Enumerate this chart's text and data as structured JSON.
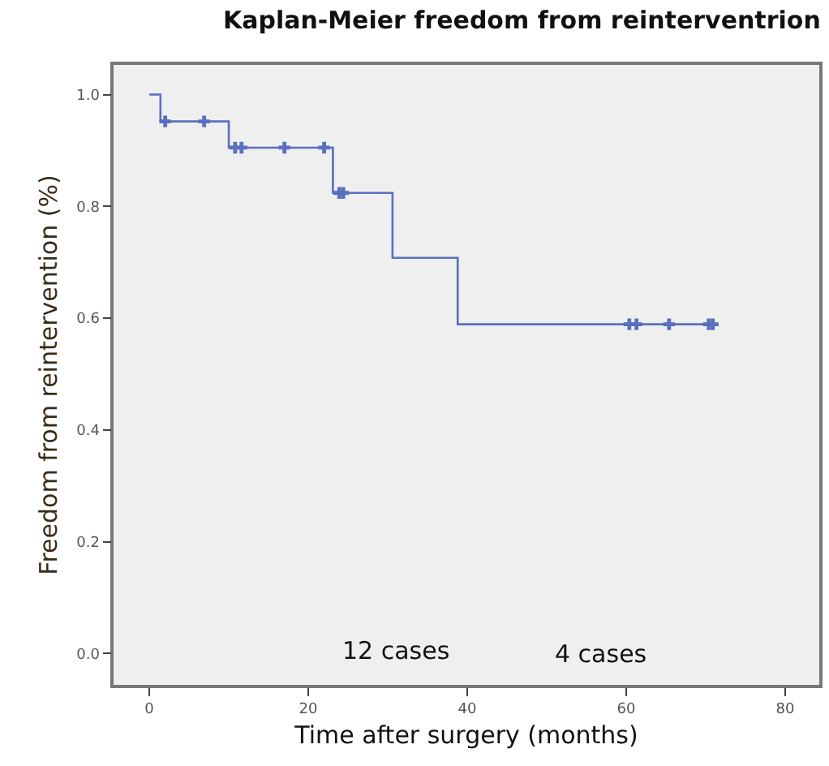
{
  "chart_data": {
    "type": "step",
    "title": "Kaplan-Meier freedom from reinterventrion",
    "xlabel": "Time after surgery (months)",
    "ylabel": "Freedom from reintervention (%)",
    "series": [
      {
        "color": "#5b6fbf",
        "x": [
          0,
          1.4,
          10.0,
          23.1,
          30.6,
          38.8,
          71.2
        ],
        "values": [
          1.0,
          0.952,
          0.905,
          0.824,
          0.708,
          0.589,
          0.589
        ],
        "marker": "none"
      },
      {
        "type": "scatter",
        "color": "#5b6fbf",
        "x": [
          2.0,
          6.9,
          10.8,
          11.6,
          17.0,
          22.0,
          23.9,
          24.4,
          60.4,
          61.3,
          65.4,
          70.4,
          70.9
        ],
        "values": [
          0.952,
          0.952,
          0.905,
          0.905,
          0.905,
          0.905,
          0.824,
          0.824,
          0.589,
          0.589,
          0.589,
          0.589,
          0.589
        ],
        "marker": "cross"
      }
    ],
    "annotations": [
      "12 cases",
      "4 cases"
    ],
    "xlim": [
      -4.5,
      84.3
    ],
    "ylim": [
      -0.056,
      1.053
    ],
    "xticks": [
      0,
      20,
      40,
      60,
      80
    ],
    "yticks": [
      {
        "value": 0,
        "label": "0.0"
      },
      {
        "value": 0.2,
        "label": "0.2"
      },
      {
        "value": 0.4,
        "label": "0.4"
      },
      {
        "value": 0.6,
        "label": "0.6"
      },
      {
        "value": 0.8,
        "label": "0.8"
      },
      {
        "value": 1.0,
        "label": "1.0"
      }
    ],
    "grid": false
  }
}
